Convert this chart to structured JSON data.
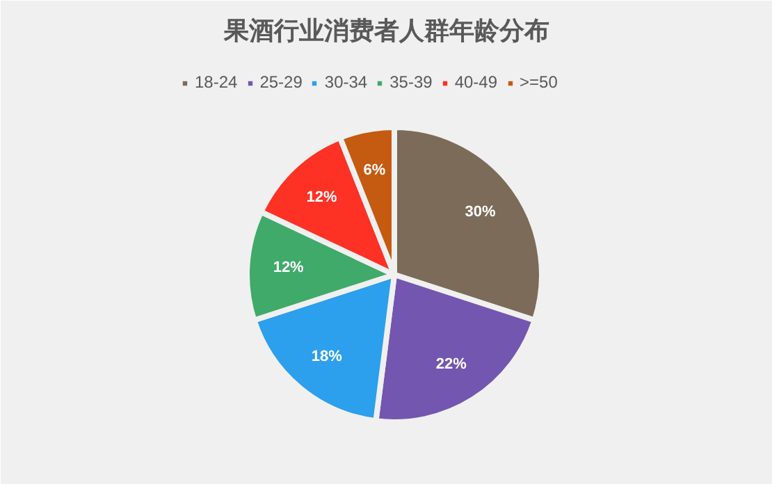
{
  "chart_data": {
    "type": "pie",
    "title": "果酒行业消费者人群年龄分布",
    "categories": [
      "18-24",
      "25-29",
      "30-34",
      "35-39",
      "40-49",
      ">=50"
    ],
    "values": [
      30,
      22,
      18,
      12,
      12,
      6
    ],
    "colors": [
      "#7b6b58",
      "#7356b0",
      "#2c9fed",
      "#3faa6a",
      "#fd3225",
      "#c55a11"
    ],
    "value_labels": [
      "30%",
      "22%",
      "18%",
      "12%",
      "12%",
      "6%"
    ],
    "legend": "top"
  }
}
